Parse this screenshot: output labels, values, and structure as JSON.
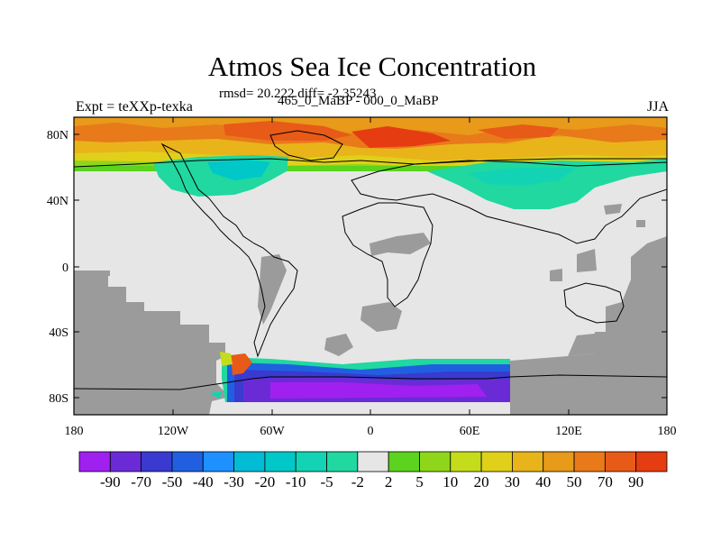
{
  "title": "Atmos Sea Ice Concentration",
  "stats": "rmsd= 20.222 diff= -2.35243",
  "experiment": "Expt = teXXp-texka",
  "period": "465_0_MaBP - 000_0_MaBP",
  "season": "JJA",
  "lat_ticks": [
    "80N",
    "40N",
    "0",
    "40S",
    "80S"
  ],
  "lon_ticks": [
    "180",
    "120W",
    "60W",
    "0",
    "60E",
    "120E",
    "180"
  ],
  "colorbar": {
    "labels": [
      "-90",
      "-70",
      "-50",
      "-40",
      "-30",
      "-20",
      "-10",
      "-5",
      "-2",
      "2",
      "5",
      "10",
      "20",
      "30",
      "40",
      "50",
      "70",
      "90"
    ],
    "colors": [
      "#a020f0",
      "#6a2bd6",
      "#3a3ad0",
      "#2060e0",
      "#1e90ff",
      "#00bcd4",
      "#00c8c8",
      "#12d4b4",
      "#20d8a0",
      "#e6e6e6",
      "#5cd31e",
      "#8fd61a",
      "#c4dc1a",
      "#e0d01a",
      "#e8b41a",
      "#e89a1a",
      "#e87a1a",
      "#e85a18",
      "#e63c12"
    ]
  },
  "colors": {
    "land": "#9b9b9b",
    "no_change": "#e6e6e6",
    "coastline": "#000000"
  }
}
